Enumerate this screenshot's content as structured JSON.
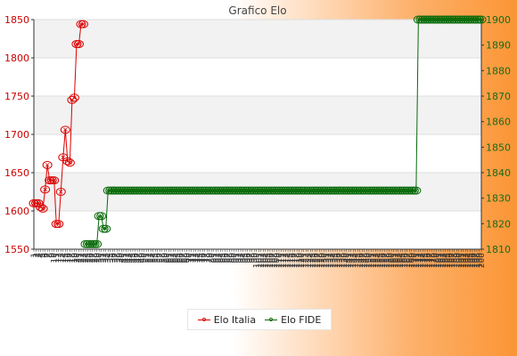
{
  "chart_data": {
    "type": "line",
    "title": "Grafico Elo",
    "grid": true,
    "legend_position": "bottom",
    "y_left": {
      "ylim": [
        1550,
        1850
      ],
      "ticks": [
        1550,
        1600,
        1650,
        1700,
        1750,
        1800,
        1850
      ]
    },
    "y_right": {
      "ylim": [
        1810,
        1900
      ],
      "ticks": [
        1810,
        1820,
        1830,
        1840,
        1850,
        1860,
        1870,
        1880,
        1890,
        1900
      ]
    },
    "x_tick_labels": [
      "1",
      "2",
      "3",
      "4",
      "5",
      "6",
      "7",
      "8",
      "9",
      "10",
      "11",
      "12",
      "13",
      "14",
      "15",
      "16",
      "17",
      "18",
      "19",
      "20",
      "21",
      "22",
      "23",
      "24",
      "25",
      "26",
      "27",
      "28",
      "29",
      "30",
      "31",
      "32",
      "33",
      "34",
      "35",
      "36",
      "37",
      "38",
      "39",
      "40",
      "41",
      "42",
      "43",
      "44",
      "45",
      "46",
      "47",
      "48",
      "49",
      "50",
      "51",
      "52",
      "53",
      "54",
      "55",
      "56",
      "57",
      "58",
      "59",
      "60",
      "61",
      "62",
      "63",
      "64",
      "65",
      "66",
      "67",
      "68",
      "69",
      "70",
      "71",
      "72",
      "73",
      "74",
      "75",
      "76",
      "77",
      "78",
      "79",
      "80",
      "81",
      "82",
      "83",
      "84",
      "85",
      "86",
      "87",
      "88",
      "89",
      "90",
      "91",
      "92",
      "93",
      "94",
      "95",
      "96",
      "97",
      "98",
      "99",
      "100",
      "101",
      "102",
      "103",
      "104",
      "105",
      "106",
      "107",
      "108",
      "109",
      "110",
      "111",
      "112",
      "113",
      "114",
      "115",
      "116",
      "117",
      "118",
      "119",
      "120",
      "121",
      "122",
      "123",
      "124",
      "125",
      "126",
      "127",
      "128",
      "129",
      "130",
      "131",
      "132",
      "133",
      "134",
      "135",
      "136",
      "137",
      "138",
      "139",
      "140",
      "141",
      "142",
      "143",
      "144",
      "145",
      "146",
      "147",
      "148",
      "149",
      "150",
      "151",
      "152",
      "153",
      "154",
      "155",
      "156",
      "157",
      "158",
      "159",
      "160",
      "161",
      "162",
      "163",
      "164",
      "165",
      "166",
      "167",
      "168",
      "169",
      "170",
      "171",
      "172",
      "173",
      "174",
      "175",
      "176",
      "177",
      "178",
      "179",
      "180",
      "181",
      "182",
      "183",
      "184",
      "185",
      "186",
      "187",
      "188",
      "189",
      "190",
      "191",
      "192",
      "193",
      "194",
      "195",
      "196",
      "197",
      "198",
      "199",
      "200"
    ],
    "series": [
      {
        "name": "Elo Italia",
        "axis": "left",
        "color": "#dd0000",
        "x": [
          1,
          2,
          3,
          4,
          5,
          6,
          7,
          8,
          9,
          10,
          11,
          12,
          13,
          14,
          15,
          16,
          17,
          18,
          19,
          20,
          21,
          22,
          23
        ],
        "values": [
          1610,
          1610,
          1610,
          1605,
          1603,
          1628,
          1660,
          1640,
          1640,
          1640,
          1583,
          1583,
          1625,
          1670,
          1706,
          1665,
          1663,
          1745,
          1748,
          1818,
          1818,
          1844,
          1844
        ]
      },
      {
        "name": "Elo FIDE",
        "axis": "right",
        "color": "#0a6b0a",
        "x_start": 24,
        "x_end": 200,
        "x": [
          24,
          25,
          26,
          27,
          28,
          29,
          30,
          31,
          32,
          33
        ],
        "values": [
          1812,
          1812,
          1812,
          1812,
          1812,
          1812,
          1823,
          1823,
          1818,
          1818
        ],
        "plateau_1": {
          "value": 1833,
          "x_from": 34,
          "x_to": 171
        },
        "plateau_2": {
          "value": 1900,
          "x_from": 172,
          "x_to": 200
        }
      }
    ]
  }
}
